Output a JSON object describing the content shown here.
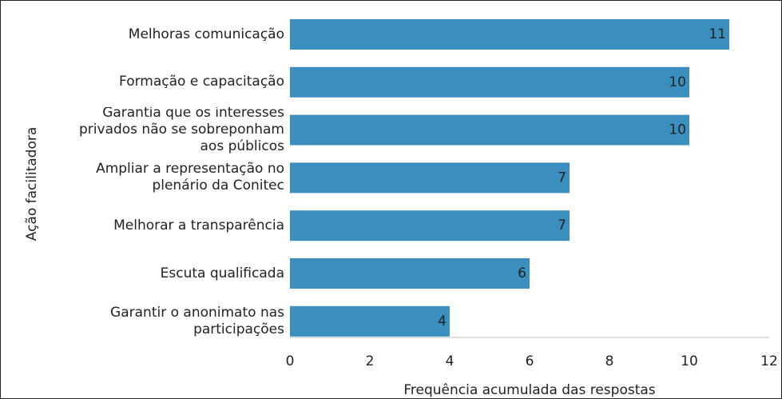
{
  "chart_data": {
    "type": "barh",
    "categories": [
      "Melhoras comunicação",
      "Formação e capacitação",
      "Garantia que os interesses privados não se sobreponham aos públicos",
      "Ampliar a representação no plenário da Conitec",
      "Melhorar a transparência",
      "Escuta qualificada",
      "Garantir o anonimato nas participações"
    ],
    "values": [
      11,
      10,
      10,
      7,
      7,
      6,
      4
    ],
    "color": "#3a8fbf",
    "xlim": [
      0,
      12
    ],
    "xticks": [
      0,
      2,
      4,
      6,
      8,
      10,
      12
    ],
    "xlabel": "Frequência acumulada das respostas",
    "ylabel": "Ação facilitadora"
  }
}
